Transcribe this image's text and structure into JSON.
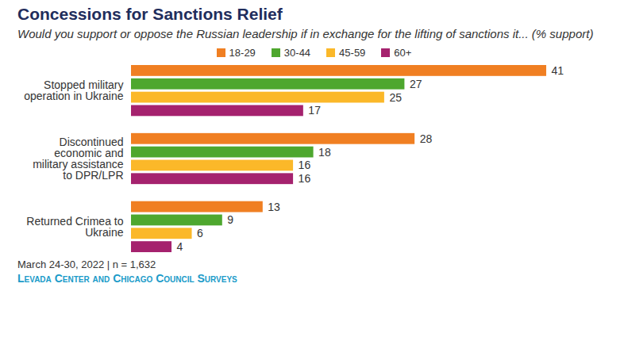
{
  "chart_data": {
    "type": "bar",
    "orientation": "horizontal",
    "title": "Concessions for Sanctions Relief",
    "subtitle": "Would you support or oppose the Russian leadership if in exchange for the lifting of sanctions it... (% support)",
    "categories": [
      "Stopped military operation in Ukraine",
      "Discontinued economic and military assistance to DPR/LPR",
      "Returned Crimea to Ukraine"
    ],
    "series": [
      {
        "name": "18-29",
        "color": "#f07f22",
        "values": [
          41,
          28,
          13
        ]
      },
      {
        "name": "30-44",
        "color": "#4ea72e",
        "values": [
          27,
          18,
          9
        ]
      },
      {
        "name": "45-59",
        "color": "#fbb829",
        "values": [
          25,
          16,
          6
        ]
      },
      {
        "name": "60+",
        "color": "#a5226e",
        "values": [
          17,
          16,
          4
        ]
      }
    ],
    "xlim": [
      0,
      45
    ],
    "tick_labels": false,
    "grid": false,
    "data_labels": true,
    "legend": "top",
    "note": "March 24-30, 2022 | n = 1,632",
    "source": "Levada Center and Chicago Council Surveys"
  }
}
